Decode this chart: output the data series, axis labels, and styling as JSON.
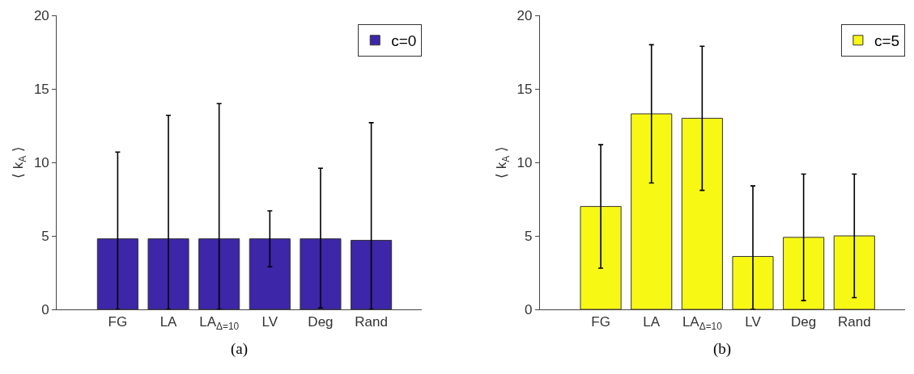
{
  "chart_data": [
    {
      "type": "bar",
      "categories": [
        "FG",
        "LA",
        "LA$_{Δ=10}$",
        "LV",
        "Deg",
        "Rand"
      ],
      "ylabel": "⟨ k$_{A}$ ⟩",
      "ylim": [
        0,
        20
      ],
      "yticks": [
        0,
        5,
        10,
        15,
        20
      ],
      "legend": "top right",
      "annotations": [
        "(a)"
      ],
      "series": [
        {
          "name": "c=0",
          "color": "#3d26a8",
          "values": [
            4.8,
            4.8,
            4.8,
            4.8,
            4.8,
            4.7
          ],
          "errors": [
            [
              0,
              10.7
            ],
            [
              0,
              13.2
            ],
            [
              0,
              14.0
            ],
            [
              2.9,
              6.7
            ],
            [
              0.1,
              9.6
            ],
            [
              0,
              12.7
            ]
          ]
        }
      ]
    },
    {
      "type": "bar",
      "categories": [
        "FG",
        "LA",
        "LA$_{Δ=10}$",
        "LV",
        "Deg",
        "Rand"
      ],
      "ylabel": "⟨ k$_{A}$ ⟩",
      "ylim": [
        0,
        20
      ],
      "yticks": [
        0,
        5,
        10,
        15,
        20
      ],
      "legend": "top right",
      "annotations": [
        "(b)"
      ],
      "series": [
        {
          "name": "c=5",
          "color": "#f8f815",
          "values": [
            7.0,
            13.3,
            13.0,
            3.6,
            4.9,
            5.0
          ],
          "errors": [
            [
              2.8,
              11.2
            ],
            [
              8.6,
              18.0
            ],
            [
              8.1,
              17.9
            ],
            [
              0,
              8.4
            ],
            [
              0.6,
              9.2
            ],
            [
              0.8,
              9.2
            ]
          ]
        }
      ]
    }
  ]
}
